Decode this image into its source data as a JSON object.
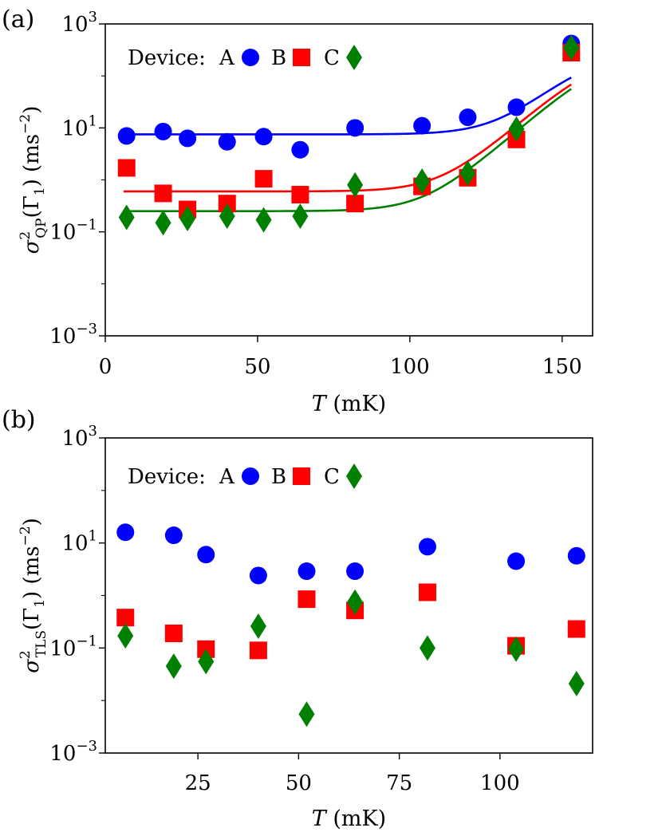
{
  "chart_data": [
    {
      "panel_label": "(a)",
      "type": "scatter",
      "xlabel_italic": "T",
      "xlabel_rest": " (mK)",
      "ylabel": {
        "base": "σ",
        "sup": "2",
        "sub": "QP",
        "mid": "(Γ",
        "mid_sub": "1",
        "tail": ") (ms",
        "tail_sup": "−2",
        "close": ")"
      },
      "xscale": "linear",
      "yscale": "log",
      "xlim": [
        0,
        160
      ],
      "ylim": [
        0.001,
        1000
      ],
      "xticks": [
        0,
        50,
        100,
        150
      ],
      "yticks": [
        {
          "value": 0.001,
          "base": "10",
          "exp": "−3"
        },
        {
          "value": 0.1,
          "base": "10",
          "exp": "−1"
        },
        {
          "value": 10,
          "base": "10",
          "exp": "1"
        },
        {
          "value": 1000,
          "base": "10",
          "exp": "3"
        }
      ],
      "legend": {
        "prefix": "Device:",
        "labels": [
          "A",
          "B",
          "C"
        ],
        "placement": "top-left"
      },
      "series": [
        {
          "name": "A",
          "marker": "circle",
          "color": "#0000ff",
          "x": [
            7,
            19,
            27,
            40,
            52,
            64,
            82,
            104,
            119,
            135,
            153
          ],
          "y": [
            7.0,
            8.5,
            6.3,
            5.4,
            6.8,
            3.8,
            10.0,
            11.0,
            16.0,
            25.0,
            420.0
          ]
        },
        {
          "name": "B",
          "marker": "square",
          "color": "#ff0000",
          "x": [
            7,
            19,
            27,
            40,
            52,
            64,
            82,
            104,
            119,
            135,
            153
          ],
          "y": [
            1.7,
            0.55,
            0.27,
            0.35,
            1.05,
            0.52,
            0.35,
            0.75,
            1.1,
            6.0,
            280.0
          ]
        },
        {
          "name": "C",
          "marker": "diamond",
          "color": "#008000",
          "x": [
            7,
            19,
            27,
            40,
            52,
            64,
            82,
            104,
            119,
            135,
            153
          ],
          "y": [
            0.19,
            0.15,
            0.18,
            0.2,
            0.17,
            0.2,
            0.8,
            0.95,
            1.35,
            9.5,
            350.0
          ]
        }
      ],
      "fits": [
        {
          "series": "A",
          "color": "#0000ff",
          "base": 7.5,
          "amp": 0.25,
          "sat": 3,
          "x0": 0
        },
        {
          "series": "B",
          "color": "#ff0000",
          "base": 0.6,
          "amp": 0.18,
          "sat": 0,
          "x0": 0
        },
        {
          "series": "C",
          "color": "#008000",
          "base": 0.25,
          "amp": 0.14,
          "sat": 0,
          "x0": 0
        }
      ]
    },
    {
      "panel_label": "(b)",
      "type": "scatter",
      "xlabel_italic": "T",
      "xlabel_rest": " (mK)",
      "ylabel": {
        "base": "σ",
        "sup": "2",
        "sub": "TLS",
        "mid": "(Γ",
        "mid_sub": "1",
        "tail": ") (ms",
        "tail_sup": "−2",
        "close": ")"
      },
      "xscale": "linear",
      "yscale": "log",
      "xlim": [
        2,
        123
      ],
      "ylim": [
        0.001,
        1000
      ],
      "xticks": [
        25,
        50,
        75,
        100
      ],
      "yticks": [
        {
          "value": 0.001,
          "base": "10",
          "exp": "−3"
        },
        {
          "value": 0.1,
          "base": "10",
          "exp": "−1"
        },
        {
          "value": 10,
          "base": "10",
          "exp": "1"
        },
        {
          "value": 1000,
          "base": "10",
          "exp": "3"
        }
      ],
      "legend": {
        "prefix": "Device:",
        "labels": [
          "A",
          "B",
          "C"
        ],
        "placement": "top-left"
      },
      "series": [
        {
          "name": "A",
          "marker": "circle",
          "color": "#0000ff",
          "x": [
            7,
            19,
            27,
            40,
            52,
            64,
            82,
            104,
            119
          ],
          "y": [
            16.0,
            14.0,
            6.0,
            2.4,
            2.9,
            2.9,
            8.5,
            4.5,
            5.7
          ]
        },
        {
          "name": "B",
          "marker": "square",
          "color": "#ff0000",
          "x": [
            7,
            19,
            27,
            40,
            52,
            64,
            82,
            104,
            119
          ],
          "y": [
            0.38,
            0.19,
            0.095,
            0.09,
            0.85,
            0.52,
            1.15,
            0.11,
            0.23
          ]
        },
        {
          "name": "C",
          "marker": "diamond",
          "color": "#008000",
          "x": [
            7,
            19,
            27,
            40,
            52,
            64,
            82,
            104,
            119
          ],
          "y": [
            0.17,
            0.045,
            0.055,
            0.26,
            0.0055,
            0.75,
            0.1,
            0.095,
            0.021
          ]
        }
      ]
    }
  ]
}
